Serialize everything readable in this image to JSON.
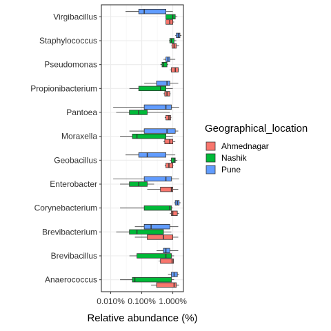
{
  "chart_data": {
    "type": "boxplot",
    "orientation": "horizontal",
    "x_scale": "log10",
    "xlabel": "Relative abundance (%)",
    "ylabel": "",
    "xlim": [
      0.005,
      2.2
    ],
    "x_ticks": [
      0.01,
      0.1,
      1.0
    ],
    "x_tick_labels": [
      "0.010%",
      "0.100%",
      "1.000%"
    ],
    "grid": true,
    "theme": "bw",
    "legend": {
      "title": "Geographical_location",
      "placement": "right",
      "entries": [
        "Ahmednagar",
        "Nashik",
        "Pune"
      ]
    },
    "colors": {
      "Ahmednagar": "#F8766D",
      "Nashik": "#00BA38",
      "Pune": "#619CFF"
    },
    "categories": [
      "Virgibacillus",
      "Staphylococcus",
      "Pseudomonas",
      "Propionibacterium",
      "Pantoea",
      "Moraxella",
      "Geobacillus",
      "Enterobacter",
      "Corynebacterium",
      "Brevibacterium",
      "Brevibacillus",
      "Anaerococcus"
    ],
    "series": [
      {
        "name": "Ahmednagar",
        "boxes": {
          "Virgibacillus": [
            0.6,
            0.6,
            0.8,
            1.0,
            1.1
          ],
          "Staphylococcus": [
            0.9,
            0.95,
            1.1,
            1.3,
            1.6
          ],
          "Pseudomonas": [
            0.8,
            0.9,
            1.2,
            1.5,
            1.6
          ],
          "Propionibacterium": [
            0.5,
            0.55,
            0.65,
            0.8,
            0.85
          ],
          "Pantoea": [
            0.55,
            0.6,
            0.75,
            0.85,
            0.9
          ],
          "Moraxella": [
            0.5,
            0.55,
            0.8,
            1.0,
            1.2
          ],
          "Geobacillus": [
            0.55,
            0.6,
            0.75,
            1.0,
            1.05
          ],
          "Enterobacter": [
            0.15,
            0.4,
            0.9,
            1.0,
            1.5
          ],
          "Corynebacterium": [
            0.8,
            0.9,
            1.0,
            1.4,
            1.6
          ],
          "Brevibacterium": [
            0.06,
            0.15,
            0.5,
            1.0,
            1.5
          ],
          "Brevibacillus": [
            0.35,
            0.4,
            0.95,
            1.05,
            1.1
          ],
          "Anaerococcus": [
            0.2,
            0.3,
            1.1,
            1.3,
            1.6
          ]
        }
      },
      {
        "name": "Nashik",
        "boxes": {
          "Virgibacillus": [
            0.6,
            0.6,
            1.0,
            1.2,
            1.4
          ],
          "Staphylococcus": [
            0.75,
            0.8,
            0.9,
            1.1,
            1.3
          ],
          "Pseudomonas": [
            0.4,
            0.45,
            0.5,
            0.65,
            0.7
          ],
          "Propionibacterium": [
            0.04,
            0.08,
            0.4,
            0.6,
            1.0
          ],
          "Pantoea": [
            0.015,
            0.04,
            0.08,
            0.15,
            0.8
          ],
          "Moraxella": [
            0.02,
            0.05,
            0.07,
            0.6,
            1.0
          ],
          "Geobacillus": [
            0.8,
            0.9,
            1.1,
            1.2,
            1.4
          ],
          "Enterobacter": [
            0.02,
            0.04,
            0.08,
            0.15,
            0.25
          ],
          "Corynebacterium": [
            0.02,
            0.12,
            0.8,
            0.9,
            1.0
          ],
          "Brevibacterium": [
            0.015,
            0.04,
            0.07,
            0.5,
            0.9
          ],
          "Brevibacillus": [
            0.04,
            0.07,
            0.6,
            0.9,
            1.1
          ],
          "Anaerococcus": [
            0.02,
            0.05,
            0.06,
            0.9,
            1.1
          ]
        }
      },
      {
        "name": "Pune",
        "boxes": {
          "Virgibacillus": [
            0.03,
            0.08,
            0.12,
            0.6,
            1.0
          ],
          "Staphylococcus": [
            1.2,
            1.3,
            1.5,
            1.7,
            1.9
          ],
          "Pseudomonas": [
            0.5,
            0.6,
            0.7,
            0.8,
            1.2
          ],
          "Propionibacterium": [
            0.12,
            0.3,
            0.65,
            0.8,
            1.5
          ],
          "Pantoea": [
            0.012,
            0.12,
            0.6,
            0.9,
            1.6
          ],
          "Moraxella": [
            0.04,
            0.12,
            0.65,
            1.2,
            1.5
          ],
          "Geobacillus": [
            0.03,
            0.08,
            0.15,
            0.6,
            1.2
          ],
          "Enterobacter": [
            0.012,
            0.12,
            0.6,
            0.9,
            1.6
          ],
          "Corynebacterium": [
            1.1,
            1.2,
            1.4,
            1.6,
            1.8
          ],
          "Brevibacterium": [
            0.06,
            0.12,
            0.2,
            0.8,
            1.5
          ],
          "Brevibacillus": [
            0.3,
            0.5,
            0.6,
            0.8,
            1.5
          ],
          "Anaerococcus": [
            0.7,
            0.9,
            1.1,
            1.4,
            1.6
          ]
        }
      }
    ]
  }
}
